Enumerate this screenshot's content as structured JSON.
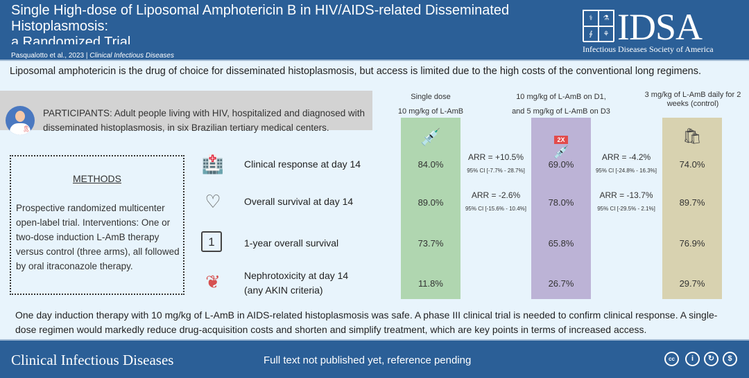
{
  "header": {
    "title": "Single High-dose of Liposomal Amphotericin B in HIV/AIDS-related Disseminated Histoplasmosis: a Randomized Trial",
    "title_lines": [
      "Single High-dose of Liposomal Amphotericin B in HIV/AIDS-related Disseminated",
      "Histoplasmosis:",
      "a Randomized Trial"
    ],
    "authors": "Pasqualotto et al., 2023 |",
    "journal": "Clinical Infectious Diseases",
    "logo_text": "IDSA",
    "logo_sub": "Infectious Diseases Society of America"
  },
  "intro": "Liposomal amphotericin is the drug of choice for disseminated histoplasmosis, but access is limited due to the high costs of the conventional long regimens.",
  "participants": "PARTICIPANTS: Adult people living with HIV, hospitalized and diagnosed with disseminated histoplasmosis, in six Brazilian tertiary medical centers.",
  "methods": {
    "title": "METHODS",
    "text": "Prospective randomized multicenter open-label trial. Interventions: One or two-dose induction L-AmB therapy versus control (three arms), all followed by oral itraconazole therapy."
  },
  "outcomes": [
    {
      "label": "Clinical response at day 14",
      "icon": "hospital-icon"
    },
    {
      "label": "Overall survival at day 14",
      "icon": "heart-pulse-icon"
    },
    {
      "label": "1-year overall survival",
      "icon": "calendar-icon"
    },
    {
      "label": "Nephrotoxicity at day 14 (any AKIN criteria)",
      "label_lines": [
        "Nephrotoxicity at day 14",
        "(any AKIN criteria)"
      ],
      "icon": "kidney-icon"
    }
  ],
  "arms": [
    {
      "head": [
        "Single dose",
        "10 mg/kg of L-AmB"
      ],
      "color": "#b0d6b0",
      "icon": "syringe-icon",
      "values": [
        "84.0%",
        "89.0%",
        "73.7%",
        "11.8%"
      ]
    },
    {
      "head": [
        "10 mg/kg of L-AmB on D1,",
        "and 5 mg/kg of L-AmB on D3"
      ],
      "color": "#bcb3d6",
      "icon": "syringe-2x-icon",
      "badge": "2X",
      "values": [
        "69.0%",
        "78.0%",
        "65.8%",
        "26.7%"
      ]
    },
    {
      "head": [
        "3 mg/kg of L-AmB daily for 2",
        "weeks (control)"
      ],
      "color": "#d8d2b0",
      "icon": "iv-bag-icon",
      "values": [
        "74.0%",
        "89.7%",
        "76.9%",
        "29.7%"
      ]
    }
  ],
  "comparisons": [
    [
      {
        "arr": "ARR = +10.5%",
        "ci": "95% CI [-7.7% - 28.7%]"
      },
      {
        "arr": "ARR = -2.6%",
        "ci": "95% CI [-15.6% - 10.4%]"
      }
    ],
    [
      {
        "arr": "ARR = -4.2%",
        "ci": "95% CI [-24.8% - 16.3%]"
      },
      {
        "arr": "ARR = -13.7%",
        "ci": "95% CI [-29.5% - 2.1%]"
      }
    ]
  ],
  "conclusion": "One day induction therapy with 10 mg/kg of L-AmB in AIDS-related histoplasmosis was safe. A phase III clinical trial is needed to confirm clinical response. A single-dose regimen would markedly reduce drug-acquisition costs and shorten and simplify treatment, which are key points in terms of increased access.",
  "footer": {
    "journal": "Clinical Infectious Diseases",
    "note": "Full text not published yet, reference pending",
    "licenses": [
      "cc",
      "by",
      "sa",
      "nc"
    ]
  }
}
